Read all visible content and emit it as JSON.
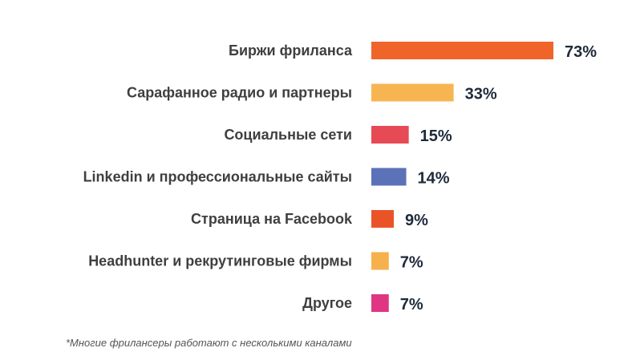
{
  "chart_data": {
    "type": "bar",
    "orientation": "horizontal",
    "title": "",
    "xlabel": "",
    "ylabel": "",
    "xlim": [
      0,
      73
    ],
    "grid": false,
    "legend": "none",
    "categories": [
      "Биржи фриланса",
      "Сарафанное радио и партнеры",
      "Социальные сети",
      "Linkedin и профессиональные сайты",
      "Страница на Facebook",
      "Headhunter и рекрутинговые фирмы",
      "Другое"
    ],
    "values": [
      73,
      33,
      15,
      14,
      9,
      7,
      7
    ],
    "value_labels": [
      "73%",
      "33%",
      "15%",
      "14%",
      "9%",
      "7%",
      "7%"
    ],
    "colors": [
      "#f0642a",
      "#f7b552",
      "#e64a55",
      "#5b72b8",
      "#ea5328",
      "#f6b04c",
      "#e03582"
    ]
  },
  "footnote": "*Многие фрилансеры работают с несколькими каналами"
}
